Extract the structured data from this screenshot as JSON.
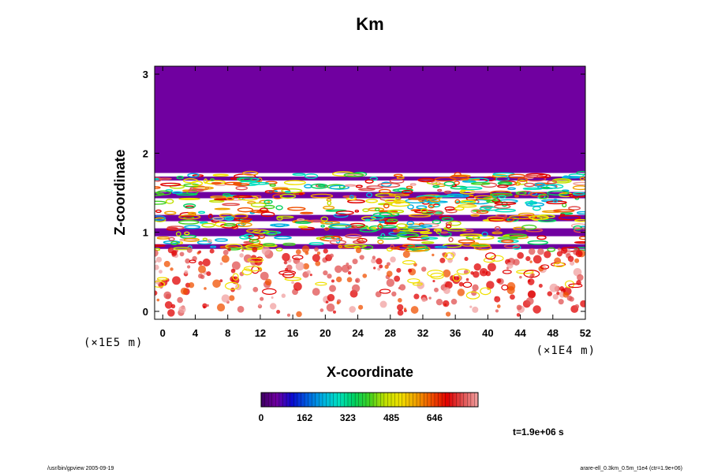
{
  "chart_data": {
    "type": "heatmap",
    "title": "Km",
    "xlabel": "X-coordinate",
    "ylabel": "Z-coordinate",
    "x_unit": "(×1E4 m)",
    "y_unit": "(×1E5 m)",
    "xlim": [
      -1,
      52
    ],
    "ylim": [
      -0.1,
      3.1
    ],
    "x_ticks": [
      0,
      4,
      8,
      12,
      16,
      20,
      24,
      28,
      32,
      36,
      40,
      44,
      48,
      52
    ],
    "y_ticks": [
      0,
      1,
      2,
      3
    ],
    "x_tick_labels": [
      "0",
      "4",
      "8",
      "12",
      "16",
      "20",
      "24",
      "28",
      "32",
      "36",
      "40",
      "44",
      "48",
      "52"
    ],
    "y_tick_labels": [
      "0",
      "1",
      "2",
      "3"
    ],
    "colorbar": {
      "min": 0,
      "max": 808,
      "ticks": [
        0,
        162,
        323,
        485,
        646
      ],
      "tick_labels": [
        "0",
        "162",
        "323",
        "485",
        "646"
      ],
      "colors": [
        "#3c0060",
        "#7000a0",
        "#0a0ad0",
        "#0060e0",
        "#00b0e0",
        "#00e0c0",
        "#00d060",
        "#40d020",
        "#c0e000",
        "#f0e000",
        "#f0a000",
        "#f05000",
        "#e00000",
        "#e05050",
        "#f0a0a0"
      ]
    },
    "top_fill_color": "#7000a0",
    "top_fill_value": 0,
    "top_fill_above_z": 1.75,
    "layers": [
      {
        "z_center": 1.68,
        "thickness": 0.05,
        "intensity": 0.0
      },
      {
        "z_center": 1.47,
        "thickness": 0.08,
        "intensity": 0.0
      },
      {
        "z_center": 1.18,
        "thickness": 0.08,
        "intensity": 0.0
      },
      {
        "z_center": 1.0,
        "thickness": 0.1,
        "intensity": 0.0
      },
      {
        "z_center": 0.82,
        "thickness": 0.06,
        "intensity": 0.0
      }
    ]
  },
  "time_label": "t=1.9e+06 s",
  "footer_left": "/usr/bin/gpview 2005-09-19",
  "footer_right": "arare-ell_0.3km_0.5m_t1e4 (ctr=1.9e+06)"
}
